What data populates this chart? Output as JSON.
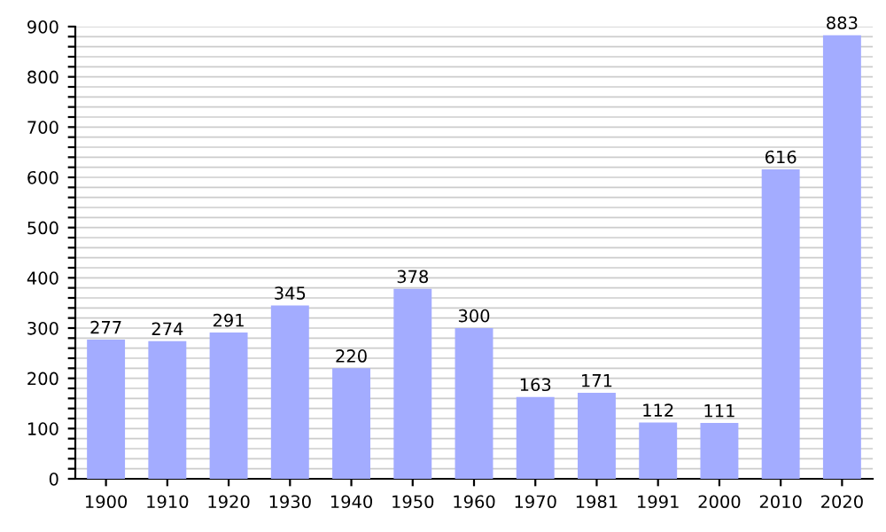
{
  "chart_data": {
    "type": "bar",
    "categories": [
      "1900",
      "1910",
      "1920",
      "1930",
      "1940",
      "1950",
      "1960",
      "1970",
      "1981",
      "1991",
      "2000",
      "2010",
      "2020"
    ],
    "values": [
      277,
      274,
      291,
      345,
      220,
      378,
      300,
      163,
      171,
      112,
      111,
      616,
      883
    ],
    "color": "#a3acff",
    "data_labels": true,
    "ylim": [
      0,
      900
    ],
    "yticks": [
      0,
      {
        "value": 20,
        "label": null
      },
      {
        "value": 40,
        "label": null
      },
      {
        "value": 60,
        "label": null
      },
      {
        "value": 80,
        "label": null
      },
      100,
      {
        "value": 120,
        "label": null
      },
      {
        "value": 140,
        "label": null
      },
      {
        "value": 160,
        "label": null
      },
      {
        "value": 180,
        "label": null
      },
      200,
      {
        "value": 220,
        "label": null
      },
      {
        "value": 240,
        "label": null
      },
      {
        "value": 260,
        "label": null
      },
      {
        "value": 280,
        "label": null
      },
      300,
      {
        "value": 320,
        "label": null
      },
      {
        "value": 340,
        "label": null
      },
      {
        "value": 360,
        "label": null
      },
      {
        "value": 380,
        "label": null
      },
      400,
      {
        "value": 420,
        "label": null
      },
      {
        "value": 440,
        "label": null
      },
      {
        "value": 460,
        "label": null
      },
      {
        "value": 480,
        "label": null
      },
      500,
      {
        "value": 520,
        "label": null
      },
      {
        "value": 540,
        "label": null
      },
      {
        "value": 560,
        "label": null
      },
      {
        "value": 580,
        "label": null
      },
      600,
      {
        "value": 620,
        "label": null
      },
      {
        "value": 640,
        "label": null
      },
      {
        "value": 660,
        "label": null
      },
      {
        "value": 680,
        "label": null
      },
      700,
      {
        "value": 720,
        "label": null
      },
      {
        "value": 740,
        "label": null
      },
      {
        "value": 760,
        "label": null
      },
      {
        "value": 780,
        "label": null
      },
      800,
      {
        "value": 820,
        "label": null
      },
      {
        "value": 840,
        "label": null
      },
      {
        "value": 860,
        "label": null
      },
      {
        "value": 880,
        "label": null
      },
      900
    ],
    "grid": "y"
  }
}
